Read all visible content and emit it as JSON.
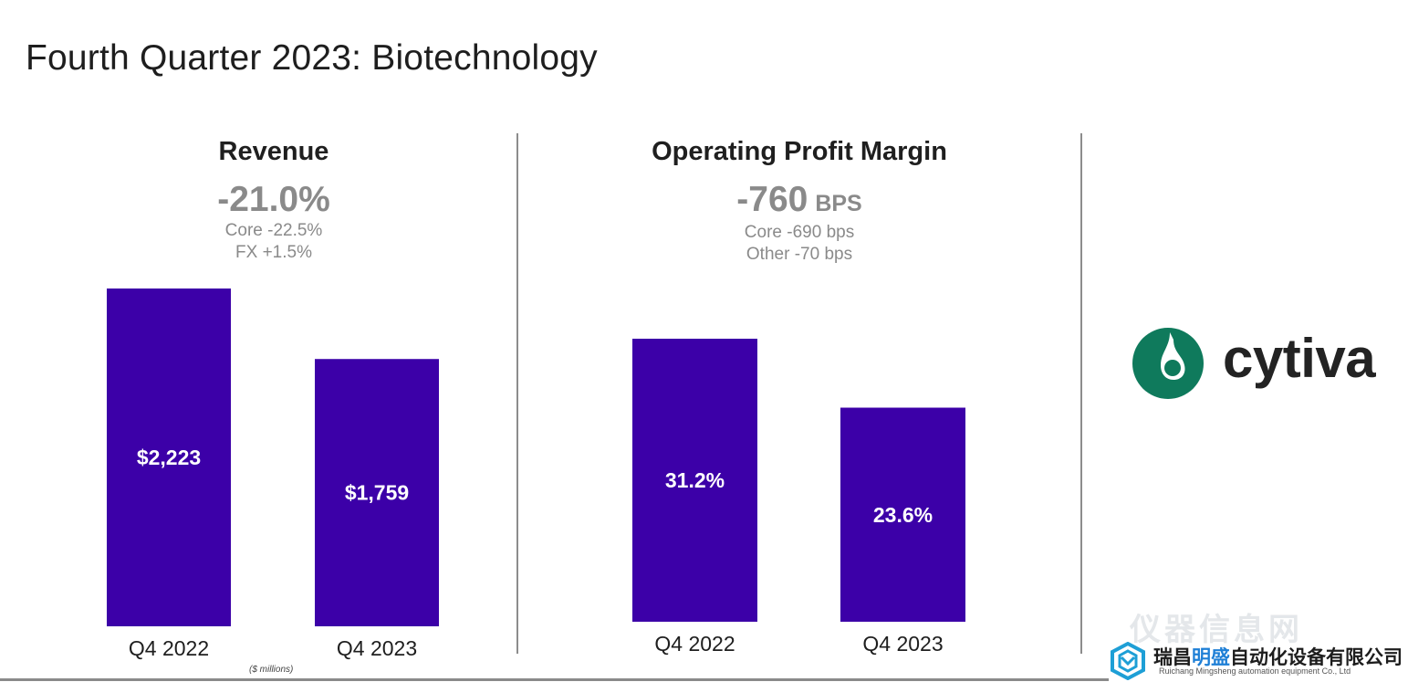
{
  "page": {
    "title": "Fourth Quarter 2023: Biotechnology"
  },
  "panels": {
    "revenue": {
      "title": "Revenue",
      "headline": "-21.0%",
      "lines": [
        "Core -22.5%",
        "FX +1.5%"
      ],
      "footnote": "($ millions)"
    },
    "margin": {
      "title": "Operating Profit Margin",
      "headline": "-760",
      "headline_unit": "BPS",
      "lines": [
        "Core -690 bps",
        "Other -70 bps"
      ]
    }
  },
  "chart_data": [
    {
      "type": "bar",
      "title": "Revenue",
      "categories": [
        "Q4 2022",
        "Q4 2023"
      ],
      "values": [
        2223,
        1759
      ],
      "data_labels": [
        "$2,223",
        "$1,759"
      ],
      "unit": "$ millions",
      "ylim": [
        0,
        2600
      ],
      "grid": false,
      "color": "#3c00a8"
    },
    {
      "type": "bar",
      "title": "Operating Profit Margin",
      "categories": [
        "Q4 2022",
        "Q4 2023"
      ],
      "values": [
        31.2,
        23.6
      ],
      "data_labels": [
        "31.2%",
        "23.6%"
      ],
      "unit": "%",
      "ylim": [
        0,
        42.5
      ],
      "grid": false,
      "color": "#3c00a8"
    }
  ],
  "logo": {
    "text": "cytiva",
    "colors": {
      "primary": "#0f7a5c",
      "text": "#232323"
    }
  },
  "watermark": {
    "faded_text": "仪器信息网",
    "company_prefix": "瑞昌",
    "company_highlight": "明盛",
    "company_suffix": "自动化设备有限公司",
    "company_en": "Ruichang Mingsheng automation equipment Co., Ltd",
    "colors": {
      "highlight": "#1e7fd6"
    }
  },
  "colors": {
    "bar": "#3c00a8",
    "muted_text": "#8a8a8a"
  }
}
